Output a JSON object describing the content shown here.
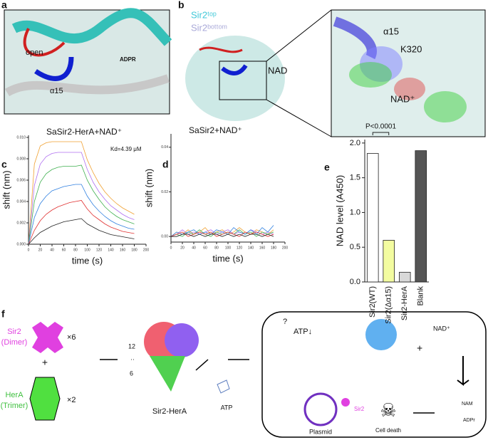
{
  "panel_labels": [
    "a",
    "b",
    "c",
    "d",
    "e",
    "f"
  ],
  "panel_a": {
    "open": "open",
    "helix": "α15",
    "ligand": "ADPR"
  },
  "panel_b": {
    "top": "Sir2ᵗᵒᵖ",
    "bottom": "Sir2ᵇᵒᵗᵗᵒᵐ",
    "ligand": "NAD",
    "zoom_helix": "α15",
    "residue": "K320",
    "zoom_ligand": "NAD⁺"
  },
  "chart_data": [
    {
      "type": "line",
      "title": "SaSir2-HerA+NAD⁺",
      "annotation": "Kd=4.39 μM",
      "xlabel": "time (s)",
      "ylabel": "shift (nm)",
      "x": [
        0,
        10,
        20,
        30,
        40,
        50,
        60,
        70,
        80,
        90,
        100,
        110,
        120,
        130,
        140,
        150,
        160,
        170,
        180
      ],
      "series": [
        {
          "color": "#f0a030",
          "values": [
            0,
            0.0075,
            0.0092,
            0.0095,
            0.0096,
            0.0096,
            0.0096,
            0.0096,
            0.0096,
            0.0096,
            0.0079,
            0.0067,
            0.0057,
            0.0049,
            0.0043,
            0.0038,
            0.0034,
            0.0031,
            0.0028
          ]
        },
        {
          "color": "#b070f0",
          "values": [
            0,
            0.0055,
            0.0075,
            0.0082,
            0.0085,
            0.0086,
            0.0086,
            0.0086,
            0.0086,
            0.0086,
            0.007,
            0.0058,
            0.0049,
            0.0042,
            0.0036,
            0.0032,
            0.0028,
            0.0025,
            0.0023
          ]
        },
        {
          "color": "#40b050",
          "values": [
            0,
            0.004,
            0.0058,
            0.0066,
            0.007,
            0.0072,
            0.0073,
            0.0073,
            0.0073,
            0.0074,
            0.006,
            0.005,
            0.0042,
            0.0035,
            0.003,
            0.0026,
            0.0023,
            0.0021,
            0.0019
          ]
        },
        {
          "color": "#3080e0",
          "values": [
            0,
            0.0025,
            0.0038,
            0.0045,
            0.005,
            0.0052,
            0.0054,
            0.0055,
            0.0056,
            0.0056,
            0.0045,
            0.0037,
            0.0031,
            0.0026,
            0.0022,
            0.0019,
            0.0017,
            0.0015,
            0.0014
          ]
        },
        {
          "color": "#e03030",
          "values": [
            0,
            0.0013,
            0.0022,
            0.0028,
            0.0032,
            0.0035,
            0.0037,
            0.0039,
            0.004,
            0.0041,
            0.0033,
            0.0027,
            0.0023,
            0.0019,
            0.0016,
            0.0014,
            0.0012,
            0.0011,
            0.001
          ]
        },
        {
          "color": "#222222",
          "values": [
            0,
            0.0006,
            0.0011,
            0.0014,
            0.0017,
            0.0019,
            0.0021,
            0.0022,
            0.0023,
            0.0024,
            0.0019,
            0.0016,
            0.0013,
            0.0011,
            0.0009,
            0.0008,
            0.0007,
            0.0006,
            0.0005
          ]
        }
      ],
      "xlim": [
        0,
        200
      ],
      "ylim": [
        0,
        0.0102
      ],
      "xticks": [
        0,
        20,
        40,
        60,
        80,
        100,
        120,
        140,
        160,
        180,
        200
      ],
      "yticks": [
        {
          "value": 0,
          "label": "0.000"
        },
        {
          "value": 0.002,
          "label": "0.002"
        },
        {
          "value": 0.004,
          "label": "0.004"
        },
        {
          "value": 0.006,
          "label": "0.006"
        },
        {
          "value": 0.008,
          "label": "0.008"
        },
        {
          "value": 0.01,
          "label": "0.010"
        }
      ]
    },
    {
      "type": "line",
      "title": "SaSir2+NAD⁺",
      "xlabel": "time (s)",
      "ylabel": "shift (nm)",
      "x": [
        0,
        10,
        20,
        30,
        40,
        50,
        60,
        70,
        80,
        90,
        100,
        110,
        120,
        130,
        140,
        150,
        160,
        170,
        180
      ],
      "series": [
        {
          "color": "#f0a030",
          "values": [
            0,
            0.002,
            0.001,
            0.003,
            0.001,
            0.002,
            0.004,
            0.001,
            0.002,
            0.003,
            0.001,
            0.002,
            0.004,
            0.002,
            0.001,
            0.003,
            0.002,
            0.001,
            0.003
          ]
        },
        {
          "color": "#b070f0",
          "values": [
            0,
            0.001,
            0.003,
            0.001,
            0.002,
            0.001,
            0.002,
            0.003,
            0.001,
            0.002,
            0.003,
            0.001,
            0.002,
            0.001,
            0.003,
            0.002,
            0.001,
            0.002,
            0.001
          ]
        },
        {
          "color": "#40b050",
          "values": [
            0,
            0.001,
            0.0,
            0.002,
            0.001,
            0.003,
            0.001,
            0.0,
            0.002,
            0.001,
            0.002,
            0.001,
            0.003,
            0.001,
            0.002,
            0.0,
            0.002,
            0.001,
            0.002
          ]
        },
        {
          "color": "#3080e0",
          "values": [
            0,
            0.002,
            0.001,
            0.002,
            0.003,
            0.001,
            0.002,
            0.001,
            0.003,
            0.002,
            0.001,
            0.004,
            0.002,
            0.001,
            0.003,
            0.001,
            0.004,
            0.002,
            0.005
          ]
        },
        {
          "color": "#e03030",
          "values": [
            0,
            0.001,
            0.002,
            0.0,
            0.001,
            0.002,
            0.001,
            0.002,
            0.0,
            0.001,
            0.002,
            0.001,
            0.0,
            0.002,
            0.001,
            0.002,
            0.001,
            0.0,
            0.001
          ]
        },
        {
          "color": "#222222",
          "values": [
            0,
            0.0,
            0.001,
            0.001,
            0.0,
            0.001,
            0.0,
            0.001,
            0.001,
            0.0,
            0.001,
            0.0,
            0.001,
            0.0,
            0.001,
            0.001,
            0.0,
            0.001,
            0.0
          ]
        }
      ],
      "xlim": [
        0,
        200
      ],
      "ylim": [
        -0.0025,
        0.046
      ],
      "xticks": [
        0,
        20,
        40,
        60,
        80,
        100,
        120,
        140,
        160,
        180,
        200
      ],
      "yticks": [
        {
          "value": 0,
          "label": "0.00"
        },
        {
          "value": 0.02,
          "label": "0.02"
        },
        {
          "value": 0.04,
          "label": "0.04"
        }
      ]
    },
    {
      "type": "bar",
      "ylabel": "NAD  level (A450)",
      "annotation": "P<0.0001",
      "categories": [
        "Sir2(WT)",
        "Sir2(Δα15)",
        "Sir2-HerA",
        "Blank"
      ],
      "values": [
        1.85,
        0.6,
        0.14,
        1.89
      ],
      "colors": [
        "#ffffff",
        "#f3fca0",
        "#d8d8d8",
        "#555555"
      ],
      "ylim": [
        0,
        2.05
      ],
      "yticks": [
        {
          "value": 0,
          "label": "0.0"
        },
        {
          "value": 0.5,
          "label": "0.5"
        },
        {
          "value": 1,
          "label": "1.0"
        },
        {
          "value": 1.5,
          "label": "1.5"
        },
        {
          "value": 2,
          "label": "2.0"
        }
      ]
    }
  ],
  "panel_f": {
    "sir2": "Sir2",
    "dimer": "(Dimer)",
    "x6": "×6",
    "plus": "+",
    "hera": "HerA",
    "trimer": "(Trimer)",
    "x2": "×2",
    "n12": "12",
    "dots": "··",
    "n6": "6",
    "complex": "Sir2-HerA",
    "atp": "ATP",
    "question": "?",
    "atp_down": "ATP↓",
    "plus2": "+",
    "nad": "NAD⁺",
    "nam": "NAM",
    "adpr": "ADPr",
    "plasmid": "Plasmid",
    "sir2_small": "Sir2",
    "death": "Cell death"
  }
}
